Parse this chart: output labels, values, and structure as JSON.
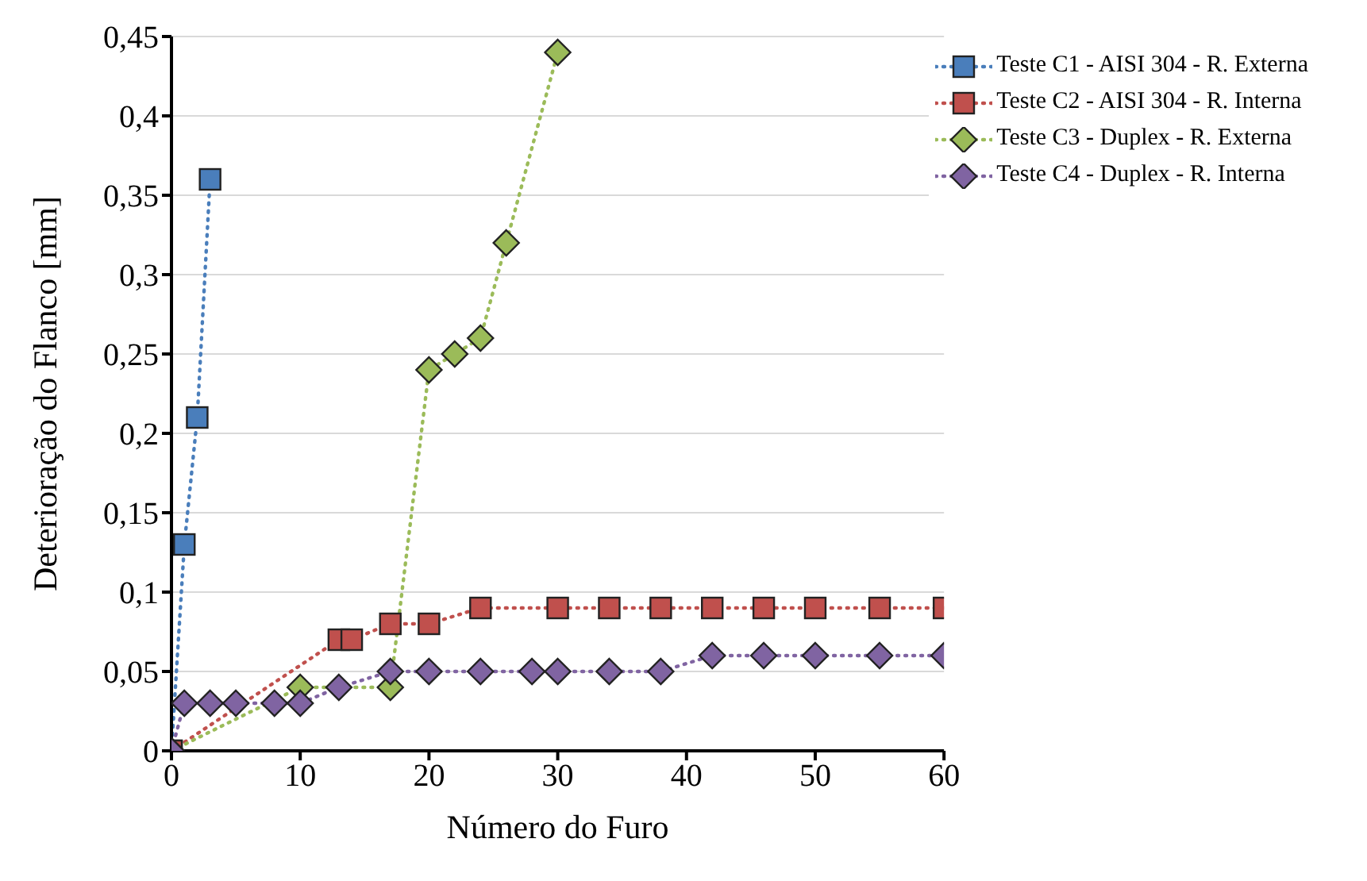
{
  "chart_data": {
    "type": "line",
    "xlabel": "Número do Furo",
    "ylabel": "Deterioração do Flanco [mm]",
    "xlim": [
      0,
      60
    ],
    "xticks": [
      0,
      10,
      20,
      30,
      40,
      50,
      60
    ],
    "ylim": [
      0,
      0.45
    ],
    "yticks": [
      {
        "value": 0,
        "label": "0"
      },
      {
        "value": 0.05,
        "label": "0,05"
      },
      {
        "value": 0.1,
        "label": "0,1"
      },
      {
        "value": 0.15,
        "label": "0,15"
      },
      {
        "value": 0.2,
        "label": "0,2"
      },
      {
        "value": 0.25,
        "label": "0,25"
      },
      {
        "value": 0.3,
        "label": "0,3"
      },
      {
        "value": 0.35,
        "label": "0,35"
      },
      {
        "value": 0.4,
        "label": "0,4"
      },
      {
        "value": 0.45,
        "label": "0,45"
      }
    ],
    "grid": "y",
    "legend": "top right",
    "line_style": "dotted",
    "series": [
      {
        "name": "Teste C1 - AISI 304 - R. Externa",
        "color": "#4a7ebb",
        "marker": "square",
        "x": [
          0,
          1,
          2,
          3
        ],
        "values": [
          0,
          0.13,
          0.21,
          0.36
        ]
      },
      {
        "name": "Teste C2 - AISI 304 - R. Interna",
        "color": "#c0504d",
        "marker": "square",
        "x": [
          0,
          13,
          14,
          17,
          20,
          24,
          30,
          34,
          38,
          42,
          46,
          50,
          55,
          60
        ],
        "values": [
          0,
          0.07,
          0.07,
          0.08,
          0.08,
          0.09,
          0.09,
          0.09,
          0.09,
          0.09,
          0.09,
          0.09,
          0.09,
          0.09
        ]
      },
      {
        "name": "Teste C3 - Duplex - R. Externa",
        "color": "#9bbb59",
        "marker": "diamond",
        "x": [
          0,
          10,
          17,
          20,
          22,
          24,
          26,
          30
        ],
        "values": [
          0,
          0.04,
          0.04,
          0.24,
          0.25,
          0.26,
          0.32,
          0.44
        ]
      },
      {
        "name": "Teste C4 - Duplex - R. Interna",
        "color": "#8064a2",
        "marker": "diamond",
        "x": [
          0,
          1,
          3,
          5,
          8,
          10,
          13,
          17,
          20,
          24,
          28,
          30,
          34,
          38,
          42,
          46,
          50,
          55,
          60
        ],
        "values": [
          0,
          0.03,
          0.03,
          0.03,
          0.03,
          0.03,
          0.04,
          0.05,
          0.05,
          0.05,
          0.05,
          0.05,
          0.05,
          0.05,
          0.06,
          0.06,
          0.06,
          0.06,
          0.06
        ]
      }
    ]
  }
}
